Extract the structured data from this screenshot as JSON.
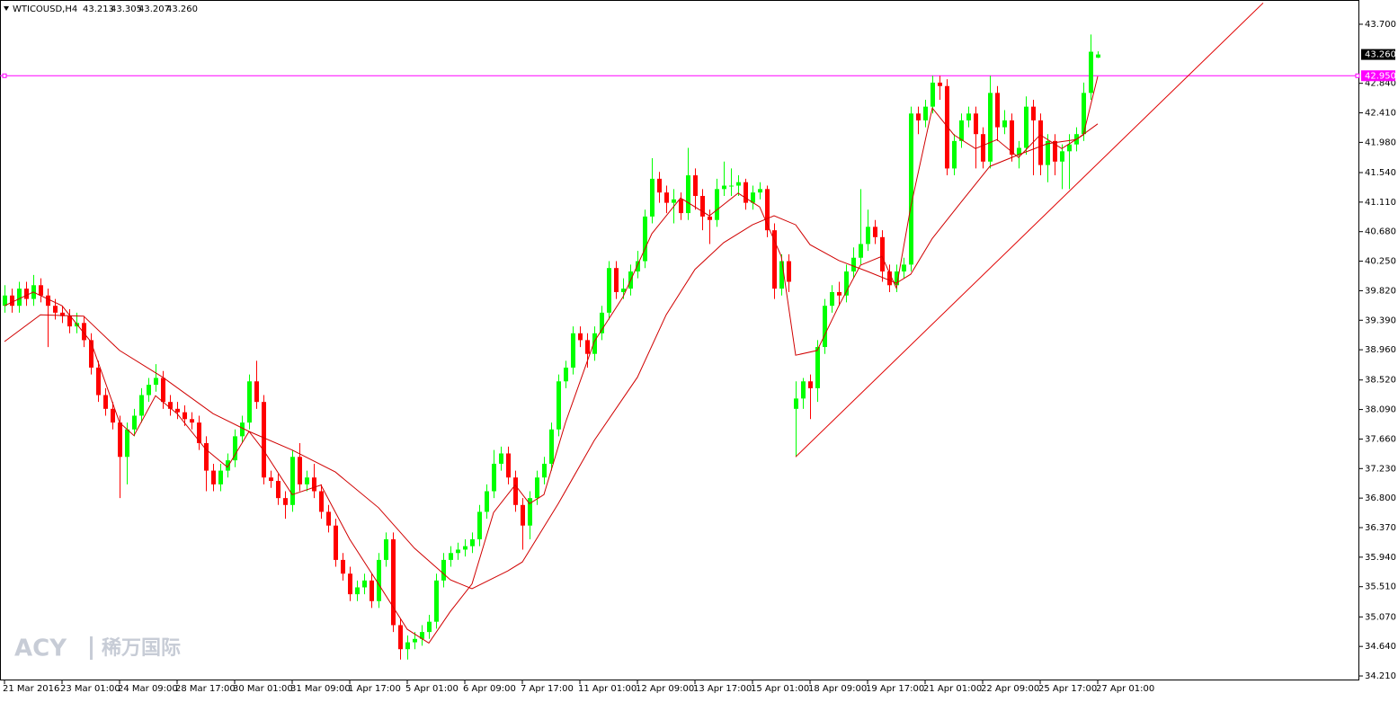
{
  "chart_data": {
    "type": "candlestick",
    "header": {
      "symbol": "WTICOUSD,H4",
      "ohlc": [
        "43.213",
        "43.305",
        "43.207",
        "43.260"
      ]
    },
    "watermark": "ACY",
    "watermark_cn": "稀万国际",
    "up_color": "#00ff00",
    "down_color": "#ff0000",
    "open": [
      39.6,
      39.75,
      39.6,
      39.85,
      39.7,
      39.9,
      39.75,
      39.6,
      39.5,
      39.45,
      39.3,
      39.35,
      39.1,
      38.7,
      38.3,
      38.1,
      37.9,
      37.4,
      37.8,
      38.0,
      38.3,
      38.45,
      38.55,
      38.2,
      38.1,
      38.05,
      37.95,
      37.9,
      37.6,
      37.2,
      37.0,
      37.2,
      37.35,
      37.7,
      37.9,
      38.5,
      38.2,
      37.1,
      37.05,
      36.8,
      36.7,
      37.4,
      37.0,
      37.1,
      36.9,
      36.6,
      36.4,
      35.9,
      35.7,
      35.4,
      35.5,
      35.6,
      35.3,
      35.9,
      36.2,
      34.95,
      34.6,
      34.7,
      34.75,
      34.85,
      35.0,
      35.6,
      35.9,
      36.0,
      36.05,
      36.1,
      36.2,
      36.6,
      36.9,
      37.3,
      37.45,
      37.1,
      36.7,
      36.4,
      36.8,
      37.1,
      37.3,
      37.8,
      38.5,
      38.7,
      39.2,
      39.1,
      38.9,
      39.2,
      39.5,
      40.15,
      39.8,
      39.85,
      40.1,
      40.25,
      40.9,
      41.45,
      41.25,
      41.1,
      41.15,
      40.95,
      41.5,
      41.2,
      40.9,
      40.85,
      41.3,
      41.35,
      41.35,
      41.4,
      41.1,
      41.25,
      41.3,
      40.7,
      39.85,
      40.25,
      38.1,
      38.25,
      38.5,
      38.4,
      39.0,
      39.6,
      39.8,
      39.75,
      40.1,
      40.3,
      40.5,
      40.75,
      40.6,
      40.1,
      39.9,
      40.1,
      40.2,
      42.4,
      42.3,
      42.5,
      42.85,
      42.8,
      41.6,
      42.0,
      42.3,
      42.4,
      42.1,
      41.7,
      42.7,
      42.2,
      42.3,
      41.8,
      41.9,
      42.5,
      42.3,
      41.65,
      42.0,
      41.7,
      41.85,
      41.95,
      42.1,
      42.7,
      43.213
    ],
    "high": [
      39.9,
      39.85,
      39.95,
      39.95,
      40.05,
      40.0,
      39.85,
      39.7,
      39.6,
      39.55,
      39.5,
      39.45,
      39.2,
      38.8,
      38.4,
      38.2,
      38.0,
      37.9,
      38.1,
      38.4,
      38.55,
      38.75,
      38.65,
      38.3,
      38.2,
      38.15,
      38.05,
      38.0,
      37.7,
      37.3,
      37.3,
      37.45,
      37.8,
      38.0,
      38.6,
      38.8,
      38.3,
      37.2,
      37.15,
      36.9,
      37.5,
      37.6,
      37.2,
      37.3,
      37.0,
      36.7,
      36.5,
      36.0,
      35.8,
      35.6,
      35.7,
      35.7,
      36.0,
      36.3,
      36.3,
      35.05,
      34.8,
      34.85,
      34.95,
      35.1,
      35.7,
      36.0,
      36.1,
      36.15,
      36.2,
      36.3,
      36.7,
      37.0,
      37.5,
      37.55,
      37.55,
      37.2,
      36.8,
      36.9,
      37.2,
      37.4,
      37.9,
      38.6,
      38.8,
      39.3,
      39.3,
      39.2,
      39.3,
      39.6,
      40.25,
      40.25,
      40.0,
      40.2,
      40.4,
      41.0,
      41.75,
      41.55,
      41.35,
      41.3,
      41.25,
      41.9,
      41.6,
      41.3,
      41.0,
      41.45,
      41.7,
      41.6,
      41.5,
      41.45,
      41.35,
      41.4,
      41.35,
      40.8,
      40.35,
      40.35,
      38.5,
      38.55,
      38.6,
      39.1,
      39.7,
      39.9,
      39.95,
      40.2,
      40.45,
      41.3,
      41.0,
      40.85,
      40.7,
      40.2,
      40.2,
      40.3,
      42.5,
      42.5,
      42.6,
      42.95,
      42.95,
      42.9,
      42.1,
      42.4,
      42.5,
      42.5,
      42.2,
      42.95,
      42.8,
      42.45,
      42.4,
      42.0,
      42.65,
      42.6,
      42.4,
      42.1,
      42.1,
      41.95,
      42.1,
      42.2,
      42.85,
      43.55,
      43.305
    ],
    "low": [
      39.5,
      39.5,
      39.5,
      39.6,
      39.6,
      39.65,
      39.0,
      39.4,
      39.35,
      39.2,
      39.2,
      39.0,
      38.6,
      38.2,
      38.0,
      37.8,
      36.8,
      37.0,
      37.7,
      37.9,
      38.2,
      38.35,
      38.1,
      38.0,
      37.95,
      37.85,
      37.8,
      37.5,
      36.9,
      36.9,
      36.9,
      37.1,
      37.25,
      37.6,
      37.8,
      38.1,
      37.0,
      36.95,
      36.7,
      36.5,
      36.6,
      36.9,
      36.9,
      36.8,
      36.5,
      36.3,
      35.8,
      35.6,
      35.3,
      35.3,
      35.4,
      35.2,
      35.2,
      35.8,
      34.85,
      34.45,
      34.45,
      34.6,
      34.65,
      34.75,
      34.9,
      35.5,
      35.8,
      35.9,
      35.95,
      36.0,
      36.1,
      36.5,
      36.8,
      37.2,
      37.0,
      36.6,
      36.05,
      36.2,
      36.7,
      37.0,
      37.2,
      37.7,
      38.4,
      38.6,
      39.0,
      38.7,
      38.8,
      39.1,
      39.4,
      39.7,
      39.7,
      39.75,
      40.0,
      40.15,
      40.8,
      41.1,
      40.95,
      40.8,
      40.85,
      40.85,
      41.0,
      40.7,
      40.5,
      40.75,
      41.2,
      41.2,
      41.2,
      41.0,
      41.0,
      41.15,
      40.6,
      39.7,
      39.75,
      39.8,
      37.4,
      38.1,
      37.95,
      38.2,
      38.9,
      39.5,
      39.6,
      39.65,
      40.0,
      40.2,
      40.4,
      40.5,
      39.95,
      39.8,
      39.8,
      40.0,
      40.1,
      42.1,
      42.2,
      42.4,
      42.6,
      41.5,
      41.5,
      41.9,
      42.2,
      41.6,
      41.6,
      41.6,
      42.0,
      42.1,
      41.7,
      41.6,
      41.8,
      41.5,
      41.5,
      41.4,
      41.5,
      41.3,
      41.3,
      41.85,
      42.0,
      42.6,
      43.207
    ],
    "close": [
      39.75,
      39.6,
      39.85,
      39.7,
      39.9,
      39.75,
      39.6,
      39.5,
      39.45,
      39.3,
      39.35,
      39.1,
      38.7,
      38.3,
      38.1,
      37.9,
      37.4,
      37.8,
      38.0,
      38.3,
      38.45,
      38.55,
      38.2,
      38.1,
      38.05,
      37.95,
      37.9,
      37.6,
      37.2,
      37.0,
      37.2,
      37.35,
      37.7,
      37.9,
      38.5,
      38.2,
      37.1,
      37.05,
      36.8,
      36.7,
      37.4,
      37.0,
      37.1,
      36.9,
      36.6,
      36.4,
      35.9,
      35.7,
      35.4,
      35.5,
      35.6,
      35.3,
      35.9,
      36.2,
      34.95,
      34.6,
      34.7,
      34.75,
      34.85,
      35.0,
      35.6,
      35.9,
      36.0,
      36.05,
      36.1,
      36.2,
      36.6,
      36.9,
      37.3,
      37.45,
      37.1,
      36.7,
      36.4,
      36.8,
      37.1,
      37.3,
      37.8,
      38.5,
      38.7,
      39.2,
      39.1,
      38.9,
      39.2,
      39.5,
      40.15,
      39.8,
      39.85,
      40.1,
      40.25,
      40.9,
      41.45,
      41.25,
      41.1,
      41.15,
      40.95,
      41.5,
      41.2,
      40.9,
      40.85,
      41.3,
      41.35,
      41.35,
      41.4,
      41.1,
      41.25,
      41.3,
      40.7,
      39.85,
      40.25,
      39.95,
      38.25,
      38.5,
      38.4,
      39.0,
      39.6,
      39.8,
      39.75,
      40.1,
      40.3,
      40.5,
      40.75,
      40.6,
      40.1,
      39.9,
      40.1,
      40.2,
      42.4,
      42.3,
      42.5,
      42.85,
      42.8,
      41.6,
      42.0,
      42.3,
      42.4,
      42.1,
      41.7,
      42.7,
      42.2,
      42.3,
      41.8,
      41.9,
      42.5,
      42.3,
      41.65,
      42.0,
      41.7,
      41.85,
      41.95,
      42.1,
      42.7,
      43.3,
      43.26
    ],
    "series": [
      {
        "color": "#d00000",
        "x": [
          0,
          4,
          8,
          12,
          16,
          18,
          21,
          24,
          28,
          31,
          34,
          36,
          40,
          44,
          48,
          52,
          56,
          59,
          62,
          65,
          68,
          71,
          73,
          75,
          78,
          82,
          86,
          90,
          94,
          98,
          102,
          105,
          108,
          110,
          113,
          116,
          119,
          122,
          124,
          126,
          129,
          132,
          135,
          138,
          141,
          144,
          147,
          150,
          152
        ],
        "values": [
          39.6,
          39.8,
          39.6,
          39.08,
          37.9,
          37.71,
          38.29,
          38.03,
          37.51,
          37.25,
          37.77,
          37.5,
          36.85,
          36.99,
          36.2,
          35.55,
          34.89,
          34.69,
          35.15,
          35.55,
          36.59,
          36.99,
          36.72,
          36.85,
          37.9,
          39.08,
          39.73,
          40.65,
          41.17,
          40.91,
          41.24,
          41.04,
          40.32,
          38.88,
          38.95,
          39.6,
          40.19,
          40.32,
          39.86,
          41.04,
          42.48,
          42.09,
          41.89,
          42.02,
          41.76,
          42.09,
          41.89,
          42.09,
          42.94
        ]
      },
      {
        "color": "#d00000",
        "x": [
          0,
          5,
          11,
          16,
          22,
          29,
          34,
          40,
          46,
          52,
          57,
          62,
          65,
          70,
          72,
          77,
          82,
          88,
          92,
          96,
          100,
          104,
          107,
          110,
          112,
          116,
          120,
          124,
          126,
          129,
          133,
          137,
          141,
          145,
          149,
          152
        ],
        "values": [
          39.08,
          39.47,
          39.45,
          38.95,
          38.56,
          38.03,
          37.77,
          37.5,
          37.18,
          36.66,
          36.07,
          35.61,
          35.48,
          35.74,
          35.87,
          36.72,
          37.64,
          38.56,
          39.47,
          40.13,
          40.52,
          40.78,
          40.91,
          40.78,
          40.49,
          40.26,
          40.1,
          39.93,
          40.06,
          40.58,
          41.11,
          41.63,
          41.8,
          41.96,
          42.02,
          42.25
        ]
      }
    ],
    "trendline": {
      "color": "#e00000",
      "x": [
        110,
        175
      ],
      "values": [
        37.4,
        44.01
      ]
    },
    "level": {
      "value": 42.95,
      "label": "42.950",
      "color": "#ff00ff"
    },
    "last_price": {
      "value": 43.26,
      "label": "43.260"
    },
    "xlim": [
      -0.625,
      188.375
    ],
    "ylim": [
      34.145,
      44.053
    ],
    "xticks": [
      {
        "value": 0,
        "label": "21 Mar 2016"
      },
      {
        "value": 8,
        "label": "23 Mar 01:00"
      },
      {
        "value": 16,
        "label": "24 Mar 09:00"
      },
      {
        "value": 24,
        "label": "28 Mar 17:00"
      },
      {
        "value": 32,
        "label": "30 Mar 01:00"
      },
      {
        "value": 40,
        "label": "31 Mar 09:00"
      },
      {
        "value": 48,
        "label": "1 Apr 17:00"
      },
      {
        "value": 56,
        "label": "5 Apr 01:00"
      },
      {
        "value": 64,
        "label": "6 Apr 09:00"
      },
      {
        "value": 72,
        "label": "7 Apr 17:00"
      },
      {
        "value": 80,
        "label": "11 Apr 01:00"
      },
      {
        "value": 88,
        "label": "12 Apr 09:00"
      },
      {
        "value": 96,
        "label": "13 Apr 17:00"
      },
      {
        "value": 104,
        "label": "15 Apr 01:00"
      },
      {
        "value": 112,
        "label": "18 Apr 09:00"
      },
      {
        "value": 120,
        "label": "19 Apr 17:00"
      },
      {
        "value": 128,
        "label": "21 Apr 01:00"
      },
      {
        "value": 136,
        "label": "22 Apr 09:00"
      },
      {
        "value": 144,
        "label": "25 Apr 17:00"
      },
      {
        "value": 152,
        "label": "27 Apr 01:00"
      }
    ],
    "yticks": [
      {
        "value": 43.7,
        "label": "43.700"
      },
      {
        "value": 42.84,
        "label": "42.840"
      },
      {
        "value": 42.41,
        "label": "42.410"
      },
      {
        "value": 41.98,
        "label": "41.980"
      },
      {
        "value": 41.54,
        "label": "41.540"
      },
      {
        "value": 41.11,
        "label": "41.110"
      },
      {
        "value": 40.68,
        "label": "40.680"
      },
      {
        "value": 40.25,
        "label": "40.250"
      },
      {
        "value": 39.82,
        "label": "39.820"
      },
      {
        "value": 39.39,
        "label": "39.390"
      },
      {
        "value": 38.96,
        "label": "38.960"
      },
      {
        "value": 38.52,
        "label": "38.520"
      },
      {
        "value": 38.09,
        "label": "38.090"
      },
      {
        "value": 37.66,
        "label": "37.660"
      },
      {
        "value": 37.23,
        "label": "37.230"
      },
      {
        "value": 36.8,
        "label": "36.800"
      },
      {
        "value": 36.37,
        "label": "36.370"
      },
      {
        "value": 35.94,
        "label": "35.940"
      },
      {
        "value": 35.51,
        "label": "35.510"
      },
      {
        "value": 35.07,
        "label": "35.070"
      },
      {
        "value": 34.64,
        "label": "34.640"
      },
      {
        "value": 34.21,
        "label": "34.210"
      }
    ]
  }
}
